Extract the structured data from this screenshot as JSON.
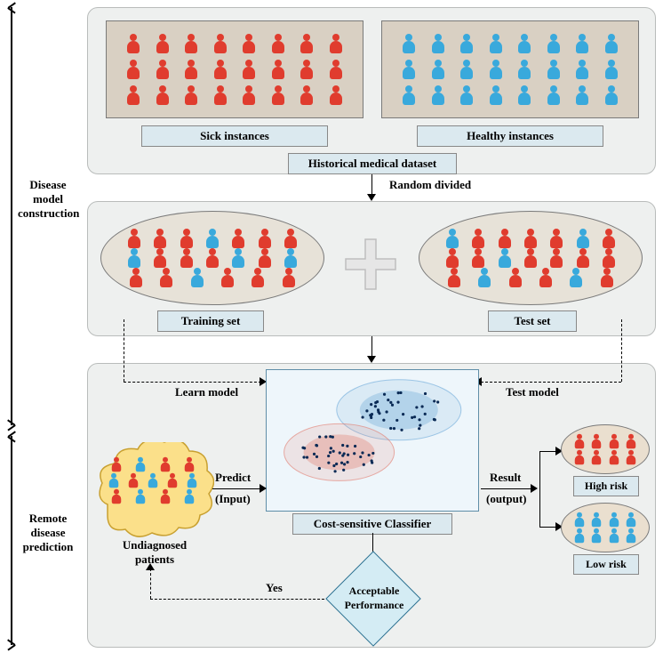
{
  "colors": {
    "panel_bg": "#eef0ef",
    "panel_border": "#b9bcbb",
    "instance_box_bg": "#d9d0c3",
    "instance_box_border": "#7a7a7a",
    "label_bg": "#dbe9ef",
    "label_border": "#888888",
    "ellipse_bg": "#e7e2d8",
    "ellipse_border": "#7a7a7a",
    "red_person": "#e03c2e",
    "blue_person": "#39a9dc",
    "plus_fill": "#e6e6e6",
    "plus_border": "#bdbdbd",
    "cloud_fill": "#fbe08a",
    "cloud_border": "#c8a030",
    "classifier_bg": "#eef6fb",
    "classifier_border": "#5f8ea8",
    "cluster_blue": "#6aa8d8",
    "cluster_red": "#e17a6d",
    "diamond_fill": "#d4ecf4",
    "diamond_border": "#2a6f8f",
    "result_high_bg": "#eadfcf",
    "result_low_bg": "#eadfcf",
    "text": "#000000"
  },
  "side_labels": {
    "top": "Disease model construction",
    "bottom": "Remote disease prediction"
  },
  "panel1": {
    "sick_label": "Sick instances",
    "healthy_label": "Healthy instances",
    "dataset_label": "Historical medical dataset",
    "sick_grid": {
      "rows": 3,
      "cols": 8,
      "color": "red"
    },
    "healthy_grid": {
      "rows": 3,
      "cols": 8,
      "color": "blue"
    }
  },
  "arrow1_label": "Random divided",
  "panel2": {
    "training_label": "Training set",
    "test_label": "Test set",
    "training_people": [
      [
        "r",
        "r",
        "r",
        "b",
        "r",
        "r",
        "r"
      ],
      [
        "b",
        "r",
        "r",
        "r",
        "b",
        "r",
        "b"
      ],
      [
        "r",
        "r",
        "b",
        "r",
        "r",
        "r"
      ]
    ],
    "test_people": [
      [
        "b",
        "r",
        "r",
        "r",
        "r",
        "b",
        "r"
      ],
      [
        "r",
        "r",
        "b",
        "r",
        "r",
        "r",
        "r"
      ],
      [
        "r",
        "b",
        "r",
        "r",
        "b",
        "r"
      ]
    ]
  },
  "panel3": {
    "learn_label": "Learn model",
    "test_label_arrow": "Test model",
    "predict_label_1": "Predict",
    "predict_label_2": "(Input)",
    "result_label_1": "Result",
    "result_label_2": "(output)",
    "classifier_label": "Cost-sensitive Classifier",
    "undiagnosed_label": "Undiagnosed patients",
    "diamond_label_1": "Acceptable",
    "diamond_label_2": "Performance",
    "yes_label": "Yes",
    "high_risk_label": "High risk",
    "low_risk_label": "Low risk",
    "undiagnosed_people": [
      [
        "r",
        "b",
        "r",
        "r"
      ],
      [
        "b",
        "r",
        "b",
        "r",
        "b"
      ],
      [
        "r",
        "b",
        "r",
        "b"
      ]
    ],
    "high_risk_people": {
      "rows": 2,
      "cols": 4,
      "color": "red"
    },
    "low_risk_people": {
      "rows": 2,
      "cols": 4,
      "color": "blue"
    },
    "scatter": {
      "blue_center": [
        0.62,
        0.32
      ],
      "red_center": [
        0.34,
        0.66
      ],
      "n_each": 40
    }
  }
}
